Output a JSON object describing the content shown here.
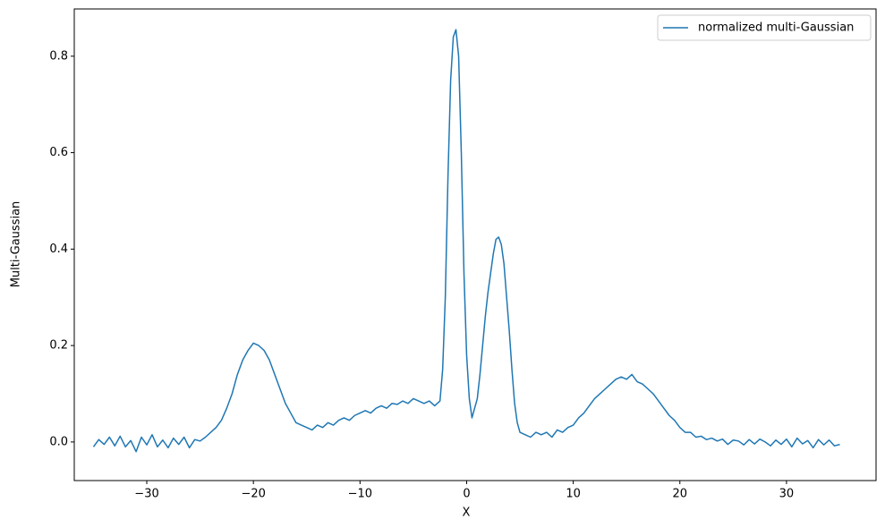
{
  "chart_data": {
    "type": "line",
    "xlabel": "X",
    "ylabel": "Multi-Gaussian",
    "legend": "upper right",
    "xlim": [
      -36.8,
      38.4
    ],
    "ylim": [
      -0.08,
      0.898
    ],
    "xticks": [
      {
        "value": -30,
        "label": "−30"
      },
      {
        "value": -20,
        "label": "−20"
      },
      {
        "value": -10,
        "label": "−10"
      },
      0,
      10,
      20,
      30
    ],
    "yticks": [
      {
        "value": 0,
        "label": "0.0"
      },
      0.2,
      0.4,
      0.6,
      0.8
    ],
    "x": [
      -35,
      -34.5,
      -34,
      -33.5,
      -33,
      -32.5,
      -32,
      -31.5,
      -31,
      -30.5,
      -30,
      -29.5,
      -29,
      -28.5,
      -28,
      -27.5,
      -27,
      -26.5,
      -26,
      -25.5,
      -25,
      -24.5,
      -24,
      -23.5,
      -23,
      -22.5,
      -22,
      -21.5,
      -21,
      -20.5,
      -20,
      -19.5,
      -19,
      -18.5,
      -18,
      -17.5,
      -17,
      -16.5,
      -16,
      -15.5,
      -15,
      -14.5,
      -14,
      -13.5,
      -13,
      -12.5,
      -12,
      -11.5,
      -11,
      -10.5,
      -10,
      -9.5,
      -9,
      -8.5,
      -8,
      -7.5,
      -7,
      -6.5,
      -6,
      -5.5,
      -5,
      -4.5,
      -4,
      -3.5,
      -3,
      -2.5,
      -2.25,
      -2,
      -1.75,
      -1.5,
      -1.25,
      -1,
      -0.75,
      -0.5,
      -0.25,
      0,
      0.25,
      0.5,
      0.75,
      1,
      1.25,
      1.5,
      1.75,
      2,
      2.25,
      2.5,
      2.75,
      3,
      3.25,
      3.5,
      3.75,
      4,
      4.25,
      4.5,
      4.75,
      5,
      5.5,
      6,
      6.5,
      7,
      7.5,
      8,
      8.5,
      9,
      9.5,
      10,
      10.5,
      11,
      11.5,
      12,
      12.5,
      13,
      13.5,
      14,
      14.5,
      15,
      15.5,
      16,
      16.5,
      17,
      17.5,
      18,
      18.5,
      19,
      19.5,
      20,
      20.5,
      21,
      21.5,
      22,
      22.5,
      23,
      23.5,
      24,
      24.5,
      25,
      25.5,
      26,
      26.5,
      27,
      27.5,
      28,
      28.5,
      29,
      29.5,
      30,
      30.5,
      31,
      31.5,
      32,
      32.5,
      33,
      33.5,
      34,
      34.5,
      35
    ],
    "series": [
      {
        "name": "normalized multi-Gaussian",
        "color": "#1f77b4",
        "values": [
          -0.01,
          0.005,
          -0.005,
          0.01,
          -0.008,
          0.012,
          -0.01,
          0.003,
          -0.02,
          0.01,
          -0.006,
          0.015,
          -0.01,
          0.004,
          -0.012,
          0.008,
          -0.005,
          0.01,
          -0.012,
          0.005,
          0.002,
          0.01,
          0.02,
          0.03,
          0.045,
          0.07,
          0.1,
          0.14,
          0.17,
          0.19,
          0.205,
          0.2,
          0.19,
          0.17,
          0.14,
          0.11,
          0.08,
          0.06,
          0.04,
          0.035,
          0.03,
          0.025,
          0.035,
          0.03,
          0.04,
          0.035,
          0.045,
          0.05,
          0.045,
          0.055,
          0.06,
          0.065,
          0.06,
          0.07,
          0.075,
          0.07,
          0.08,
          0.078,
          0.085,
          0.08,
          0.09,
          0.085,
          0.08,
          0.085,
          0.075,
          0.085,
          0.15,
          0.3,
          0.55,
          0.75,
          0.84,
          0.855,
          0.8,
          0.6,
          0.35,
          0.18,
          0.09,
          0.05,
          0.07,
          0.09,
          0.14,
          0.2,
          0.26,
          0.31,
          0.35,
          0.39,
          0.42,
          0.425,
          0.41,
          0.37,
          0.3,
          0.23,
          0.15,
          0.08,
          0.04,
          0.02,
          0.015,
          0.01,
          0.02,
          0.015,
          0.02,
          0.01,
          0.025,
          0.02,
          0.03,
          0.035,
          0.05,
          0.06,
          0.075,
          0.09,
          0.1,
          0.11,
          0.12,
          0.13,
          0.135,
          0.13,
          0.14,
          0.125,
          0.12,
          0.11,
          0.1,
          0.085,
          0.07,
          0.055,
          0.045,
          0.03,
          0.02,
          0.02,
          0.01,
          0.012,
          0.005,
          0.008,
          0.002,
          0.006,
          -0.005,
          0.004,
          0.002,
          -0.006,
          0.005,
          -0.004,
          0.006,
          0,
          -0.008,
          0.004,
          -0.005,
          0.006,
          -0.01,
          0.008,
          -0.004,
          0.003,
          -0.012,
          0.005,
          -0.006,
          0.004,
          -0.008,
          -0.005
        ]
      }
    ]
  }
}
